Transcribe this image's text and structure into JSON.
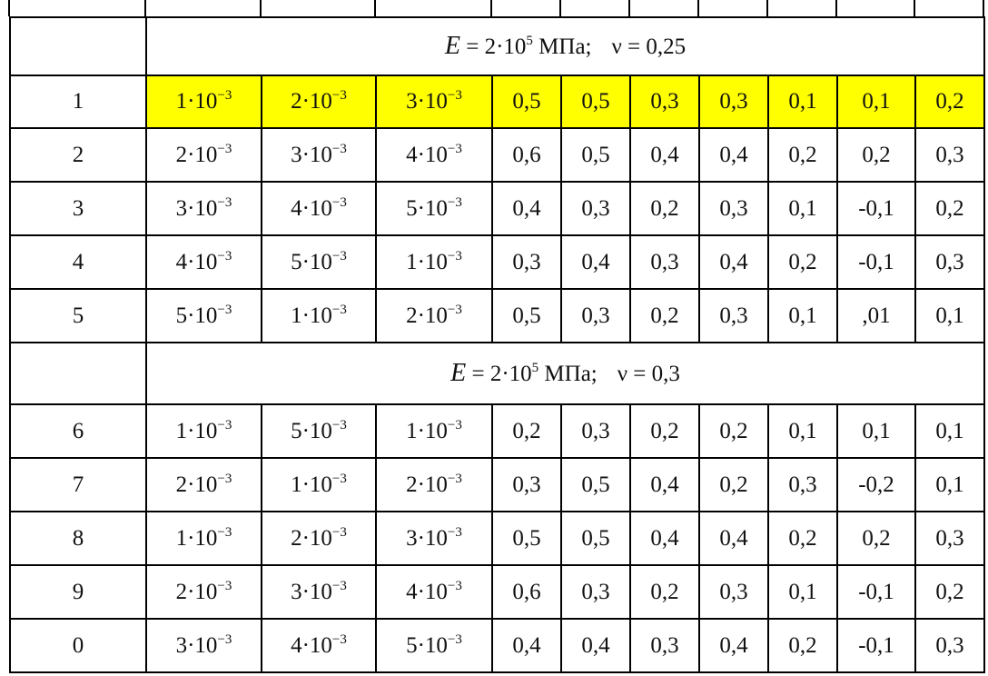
{
  "sections": [
    {
      "header": {
        "symbol": "E",
        "value": "= 2·10",
        "exp": "5",
        "unit": "МПа;",
        "nu": "ν = 0,25"
      },
      "rows": [
        {
          "label": "1",
          "highlight": "#ffff00",
          "sci": [
            {
              "base": "1·10",
              "exp": "−3"
            },
            {
              "base": "2·10",
              "exp": "−3"
            },
            {
              "base": "3·10",
              "exp": "−3"
            }
          ],
          "cells": [
            "0,5",
            "0,5",
            "0,3",
            "0,3",
            "0,1",
            "0,1",
            "0,2"
          ]
        },
        {
          "label": "2",
          "sci": [
            {
              "base": "2·10",
              "exp": "−3"
            },
            {
              "base": "3·10",
              "exp": "−3"
            },
            {
              "base": "4·10",
              "exp": "−3"
            }
          ],
          "cells": [
            "0,6",
            "0,5",
            "0,4",
            "0,4",
            "0,2",
            "0,2",
            "0,3"
          ]
        },
        {
          "label": "3",
          "sci": [
            {
              "base": "3·10",
              "exp": "−3"
            },
            {
              "base": "4·10",
              "exp": "−3"
            },
            {
              "base": "5·10",
              "exp": "−3"
            }
          ],
          "cells": [
            "0,4",
            "0,3",
            "0,2",
            "0,3",
            "0,1",
            "-0,1",
            "0,2"
          ]
        },
        {
          "label": "4",
          "sci": [
            {
              "base": "4·10",
              "exp": "−3"
            },
            {
              "base": "5·10",
              "exp": "−3"
            },
            {
              "base": "1·10",
              "exp": "−3"
            }
          ],
          "cells": [
            "0,3",
            "0,4",
            "0,3",
            "0,4",
            "0,2",
            "-0,1",
            "0,3"
          ]
        },
        {
          "label": "5",
          "sci": [
            {
              "base": "5·10",
              "exp": "−3"
            },
            {
              "base": "1·10",
              "exp": "−3"
            },
            {
              "base": "2·10",
              "exp": "−3"
            }
          ],
          "cells": [
            "0,5",
            "0,3",
            "0,2",
            "0,3",
            "0,1",
            ",01",
            "0,1"
          ]
        }
      ]
    },
    {
      "header": {
        "symbol": "E",
        "value": "= 2·10",
        "exp": "5",
        "unit": "МПа;",
        "nu": "ν = 0,3"
      },
      "rows": [
        {
          "label": "6",
          "sci": [
            {
              "base": "1·10",
              "exp": "−3"
            },
            {
              "base": "5·10",
              "exp": "−3"
            },
            {
              "base": "1·10",
              "exp": "−3"
            }
          ],
          "cells": [
            "0,2",
            "0,3",
            "0,2",
            "0,2",
            "0,1",
            "0,1",
            "0,1"
          ]
        },
        {
          "label": "7",
          "sci": [
            {
              "base": "2·10",
              "exp": "−3"
            },
            {
              "base": "1·10",
              "exp": "−3"
            },
            {
              "base": "2·10",
              "exp": "−3"
            }
          ],
          "cells": [
            "0,3",
            "0,5",
            "0,4",
            "0,2",
            "0,3",
            "-0,2",
            "0,1"
          ]
        },
        {
          "label": "8",
          "sci": [
            {
              "base": "1·10",
              "exp": "−3"
            },
            {
              "base": "2·10",
              "exp": "−3"
            },
            {
              "base": "3·10",
              "exp": "−3"
            }
          ],
          "cells": [
            "0,5",
            "0,5",
            "0,4",
            "0,4",
            "0,2",
            "0,2",
            "0,3"
          ]
        },
        {
          "label": "9",
          "sci": [
            {
              "base": "2·10",
              "exp": "−3"
            },
            {
              "base": "3·10",
              "exp": "−3"
            },
            {
              "base": "4·10",
              "exp": "−3"
            }
          ],
          "cells": [
            "0,6",
            "0,3",
            "0,2",
            "0,3",
            "0,1",
            "-0,1",
            "0,2"
          ]
        },
        {
          "label": "0",
          "sci": [
            {
              "base": "3·10",
              "exp": "−3"
            },
            {
              "base": "4·10",
              "exp": "−3"
            },
            {
              "base": "5·10",
              "exp": "−3"
            }
          ],
          "cells": [
            "0,4",
            "0,4",
            "0,3",
            "0,4",
            "0,2",
            "-0,1",
            "0,3"
          ]
        }
      ]
    }
  ]
}
